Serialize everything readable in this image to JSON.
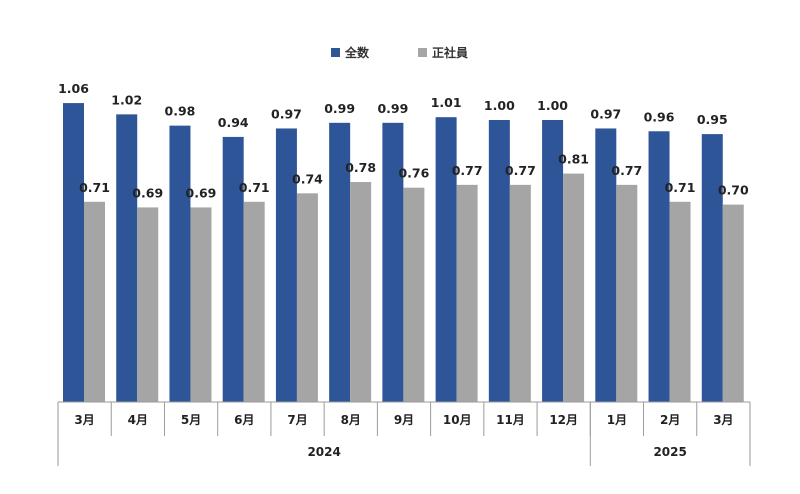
{
  "legend": {
    "series1": "全数",
    "series2": "正社員"
  },
  "colors": {
    "series1": "#2E5597",
    "series2": "#A5A5A5",
    "axis": "#9a9a9a"
  },
  "chart_data": {
    "type": "bar",
    "categories": [
      "3月",
      "4月",
      "5月",
      "6月",
      "7月",
      "8月",
      "9月",
      "10月",
      "11月",
      "12月",
      "1月",
      "2月",
      "3月"
    ],
    "year_groups": [
      {
        "label": "2024",
        "start": 0,
        "end": 9
      },
      {
        "label": "2025",
        "start": 10,
        "end": 12
      }
    ],
    "series": [
      {
        "name": "全数",
        "values": [
          1.06,
          1.02,
          0.98,
          0.94,
          0.97,
          0.99,
          0.99,
          1.01,
          1.0,
          1.0,
          0.97,
          0.96,
          0.95
        ],
        "labels": [
          "1.06",
          "1.02",
          "0.98",
          "0.94",
          "0.97",
          "0.99",
          "0.99",
          "1.01",
          "1.00",
          "1.00",
          "0.97",
          "0.96",
          "0.95"
        ]
      },
      {
        "name": "正社員",
        "values": [
          0.71,
          0.69,
          0.69,
          0.71,
          0.74,
          0.78,
          0.76,
          0.77,
          0.77,
          0.81,
          0.77,
          0.71,
          0.7
        ],
        "labels": [
          "0.71",
          "0.69",
          "0.69",
          "0.71",
          "0.74",
          "0.78",
          "0.76",
          "0.77",
          "0.77",
          "0.81",
          "0.77",
          "0.71",
          "0.70"
        ]
      }
    ],
    "ylim": [
      0,
      1.06
    ],
    "grid": false,
    "legend_position": "top-center"
  }
}
